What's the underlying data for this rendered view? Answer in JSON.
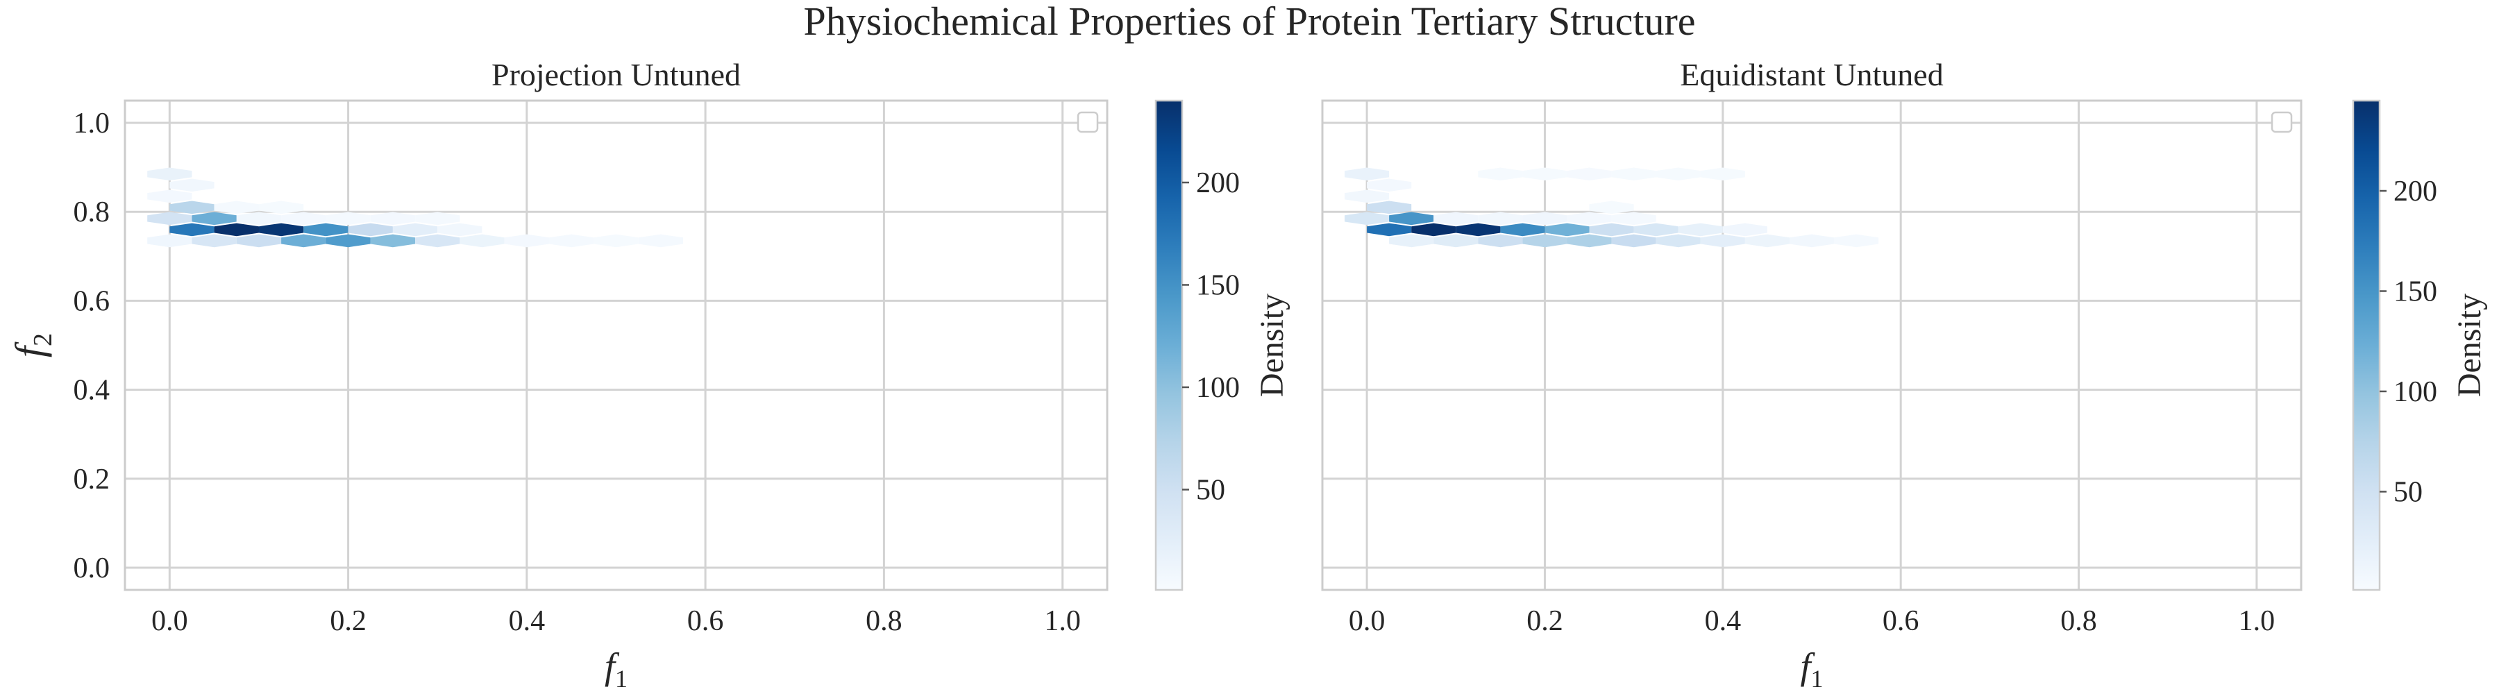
{
  "figure": {
    "suptitle": "Physiochemical Properties of Protein Tertiary Structure"
  },
  "chart_data": [
    {
      "type": "heatmap",
      "subtype": "hexbin",
      "title": "Projection Untuned",
      "xlabel": "f",
      "xlabel_sub": "1",
      "ylabel": "f",
      "ylabel_sub": "2",
      "xlim": [
        -0.05,
        1.05
      ],
      "ylim": [
        -0.05,
        1.05
      ],
      "xticks": [
        0.0,
        0.2,
        0.4,
        0.6,
        0.8,
        1.0
      ],
      "xtick_labels": [
        "0.0",
        "0.2",
        "0.4",
        "0.6",
        "0.8",
        "1.0"
      ],
      "yticks": [
        0.0,
        0.2,
        0.4,
        0.6,
        0.8,
        1.0
      ],
      "ytick_labels": [
        "0.0",
        "0.2",
        "0.4",
        "0.6",
        "0.8",
        "1.0"
      ],
      "grid": true,
      "legend": "top-right (empty)",
      "colormap": "Blues",
      "colorbar": {
        "label": "Density",
        "range": [
          1,
          240
        ],
        "ticks": [
          50,
          100,
          150,
          200
        ],
        "tick_labels": [
          "50",
          "100",
          "150",
          "200"
        ]
      },
      "bins": [
        {
          "x": 0.0,
          "y": 0.885,
          "v": 18
        },
        {
          "x": 0.025,
          "y": 0.86,
          "v": 8
        },
        {
          "x": 0.0,
          "y": 0.835,
          "v": 6
        },
        {
          "x": 0.025,
          "y": 0.81,
          "v": 70
        },
        {
          "x": 0.075,
          "y": 0.81,
          "v": 4
        },
        {
          "x": 0.125,
          "y": 0.81,
          "v": 3
        },
        {
          "x": 0.0,
          "y": 0.785,
          "v": 45
        },
        {
          "x": 0.05,
          "y": 0.785,
          "v": 120
        },
        {
          "x": 0.1,
          "y": 0.785,
          "v": 8
        },
        {
          "x": 0.15,
          "y": 0.785,
          "v": 6
        },
        {
          "x": 0.2,
          "y": 0.785,
          "v": 5
        },
        {
          "x": 0.25,
          "y": 0.785,
          "v": 6
        },
        {
          "x": 0.3,
          "y": 0.785,
          "v": 4
        },
        {
          "x": 0.025,
          "y": 0.76,
          "v": 175
        },
        {
          "x": 0.075,
          "y": 0.76,
          "v": 240
        },
        {
          "x": 0.125,
          "y": 0.76,
          "v": 235
        },
        {
          "x": 0.175,
          "y": 0.76,
          "v": 150
        },
        {
          "x": 0.225,
          "y": 0.76,
          "v": 60
        },
        {
          "x": 0.275,
          "y": 0.76,
          "v": 25
        },
        {
          "x": 0.325,
          "y": 0.76,
          "v": 8
        },
        {
          "x": 0.0,
          "y": 0.735,
          "v": 10
        },
        {
          "x": 0.05,
          "y": 0.735,
          "v": 40
        },
        {
          "x": 0.1,
          "y": 0.735,
          "v": 55
        },
        {
          "x": 0.15,
          "y": 0.735,
          "v": 120
        },
        {
          "x": 0.2,
          "y": 0.735,
          "v": 140
        },
        {
          "x": 0.25,
          "y": 0.735,
          "v": 105
        },
        {
          "x": 0.3,
          "y": 0.735,
          "v": 40
        },
        {
          "x": 0.35,
          "y": 0.735,
          "v": 15
        },
        {
          "x": 0.4,
          "y": 0.735,
          "v": 6
        },
        {
          "x": 0.45,
          "y": 0.735,
          "v": 4
        },
        {
          "x": 0.5,
          "y": 0.735,
          "v": 3
        },
        {
          "x": 0.55,
          "y": 0.735,
          "v": 4
        }
      ]
    },
    {
      "type": "heatmap",
      "subtype": "hexbin",
      "title": "Equidistant Untuned",
      "xlabel": "f",
      "xlabel_sub": "1",
      "xlim": [
        -0.05,
        1.05
      ],
      "ylim": [
        -0.05,
        1.05
      ],
      "xticks": [
        0.0,
        0.2,
        0.4,
        0.6,
        0.8,
        1.0
      ],
      "xtick_labels": [
        "0.0",
        "0.2",
        "0.4",
        "0.6",
        "0.8",
        "1.0"
      ],
      "yticks": [
        0.0,
        0.2,
        0.4,
        0.6,
        0.8,
        1.0
      ],
      "grid": true,
      "legend": "top-right (empty)",
      "colormap": "Blues",
      "colorbar": {
        "label": "Density",
        "range": [
          1,
          245
        ],
        "ticks": [
          50,
          100,
          150,
          200
        ],
        "tick_labels": [
          "50",
          "100",
          "150",
          "200"
        ]
      },
      "bins": [
        {
          "x": 0.0,
          "y": 0.885,
          "v": 18
        },
        {
          "x": 0.15,
          "y": 0.885,
          "v": 3
        },
        {
          "x": 0.2,
          "y": 0.885,
          "v": 3
        },
        {
          "x": 0.25,
          "y": 0.885,
          "v": 4
        },
        {
          "x": 0.3,
          "y": 0.885,
          "v": 3
        },
        {
          "x": 0.35,
          "y": 0.885,
          "v": 3
        },
        {
          "x": 0.4,
          "y": 0.885,
          "v": 3
        },
        {
          "x": 0.025,
          "y": 0.86,
          "v": 6
        },
        {
          "x": 0.0,
          "y": 0.835,
          "v": 8
        },
        {
          "x": 0.025,
          "y": 0.81,
          "v": 55
        },
        {
          "x": 0.275,
          "y": 0.81,
          "v": 3
        },
        {
          "x": 0.0,
          "y": 0.785,
          "v": 40
        },
        {
          "x": 0.05,
          "y": 0.785,
          "v": 150
        },
        {
          "x": 0.1,
          "y": 0.785,
          "v": 10
        },
        {
          "x": 0.15,
          "y": 0.785,
          "v": 8
        },
        {
          "x": 0.2,
          "y": 0.785,
          "v": 10
        },
        {
          "x": 0.25,
          "y": 0.785,
          "v": 6
        },
        {
          "x": 0.3,
          "y": 0.785,
          "v": 5
        },
        {
          "x": 0.025,
          "y": 0.76,
          "v": 185
        },
        {
          "x": 0.075,
          "y": 0.76,
          "v": 245
        },
        {
          "x": 0.125,
          "y": 0.76,
          "v": 240
        },
        {
          "x": 0.175,
          "y": 0.76,
          "v": 160
        },
        {
          "x": 0.225,
          "y": 0.76,
          "v": 120
        },
        {
          "x": 0.275,
          "y": 0.76,
          "v": 55
        },
        {
          "x": 0.325,
          "y": 0.76,
          "v": 40
        },
        {
          "x": 0.375,
          "y": 0.76,
          "v": 20
        },
        {
          "x": 0.425,
          "y": 0.76,
          "v": 10
        },
        {
          "x": 0.05,
          "y": 0.735,
          "v": 20
        },
        {
          "x": 0.1,
          "y": 0.735,
          "v": 30
        },
        {
          "x": 0.15,
          "y": 0.735,
          "v": 55
        },
        {
          "x": 0.2,
          "y": 0.735,
          "v": 75
        },
        {
          "x": 0.25,
          "y": 0.735,
          "v": 80
        },
        {
          "x": 0.3,
          "y": 0.735,
          "v": 60
        },
        {
          "x": 0.35,
          "y": 0.735,
          "v": 40
        },
        {
          "x": 0.4,
          "y": 0.735,
          "v": 25
        },
        {
          "x": 0.45,
          "y": 0.735,
          "v": 15
        },
        {
          "x": 0.5,
          "y": 0.735,
          "v": 8
        },
        {
          "x": 0.55,
          "y": 0.735,
          "v": 5
        }
      ]
    }
  ]
}
